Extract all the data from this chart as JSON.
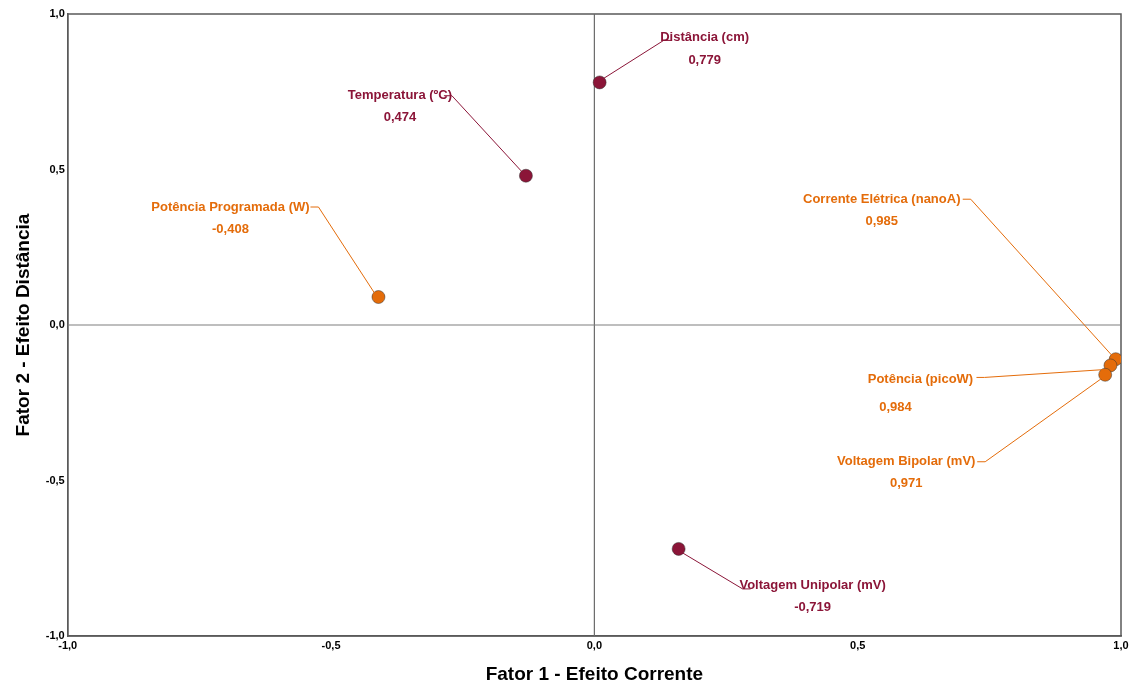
{
  "chart_data": {
    "type": "scatter",
    "xlabel": "Fator 1 - Efeito Corrente",
    "ylabel": "Fator 2 - Efeito Distância",
    "xlim": [
      -1,
      1
    ],
    "ylim": [
      -1,
      1
    ],
    "xticks": [
      {
        "value": -1,
        "label": "-1,0"
      },
      {
        "value": -0.5,
        "label": "-0,5"
      },
      {
        "value": 0,
        "label": "0,0"
      },
      {
        "value": 0.5,
        "label": "0,5"
      },
      {
        "value": 1,
        "label": "1,0"
      }
    ],
    "yticks": [
      {
        "value": -1,
        "label": "-1,0"
      },
      {
        "value": -0.5,
        "label": "-0,5"
      },
      {
        "value": 0,
        "label": "0,0"
      },
      {
        "value": 0.5,
        "label": "0,5"
      },
      {
        "value": 1,
        "label": "1,0"
      }
    ],
    "grid": false,
    "legend": false,
    "marker": "circle",
    "ref_lines": [
      {
        "axis": "x",
        "value": 0,
        "color": "#6a6a6a"
      },
      {
        "axis": "y",
        "value": 0,
        "color": "#7f7f7f"
      }
    ],
    "series": [
      {
        "color": "#8b1538",
        "x": [
          0.01,
          -0.13,
          0.16
        ],
        "values": [
          0.78,
          0.48,
          -0.72
        ]
      },
      {
        "color": "#e46c0a",
        "x": [
          -0.41,
          0.99,
          0.98,
          0.97
        ],
        "values": [
          0.09,
          -0.11,
          -0.13,
          -0.16
        ]
      }
    ],
    "annotations": [
      {
        "text": "Distância (cm)",
        "x": 0.01,
        "y": 0.78
      },
      "0,779",
      {
        "text": "Temperatura (ºC)",
        "x": -0.13,
        "y": 0.48
      },
      "0,474",
      {
        "text": "Potência Programada (W)",
        "x": -0.41,
        "y": 0.09
      },
      "-0,408",
      {
        "text": "Corrente Elétrica (nanoA)",
        "x": 0.99,
        "y": -0.11
      },
      "0,985",
      {
        "text": "Potência (picoW)",
        "x": 0.98,
        "y": -0.13
      },
      "0,984",
      {
        "text": "Voltagem Bipolar (mV)",
        "x": 0.97,
        "y": -0.16
      },
      "0,971",
      {
        "text": "Voltagem Unipolar (mV)",
        "x": 0.16,
        "y": -0.72
      },
      "-0,719"
    ]
  }
}
